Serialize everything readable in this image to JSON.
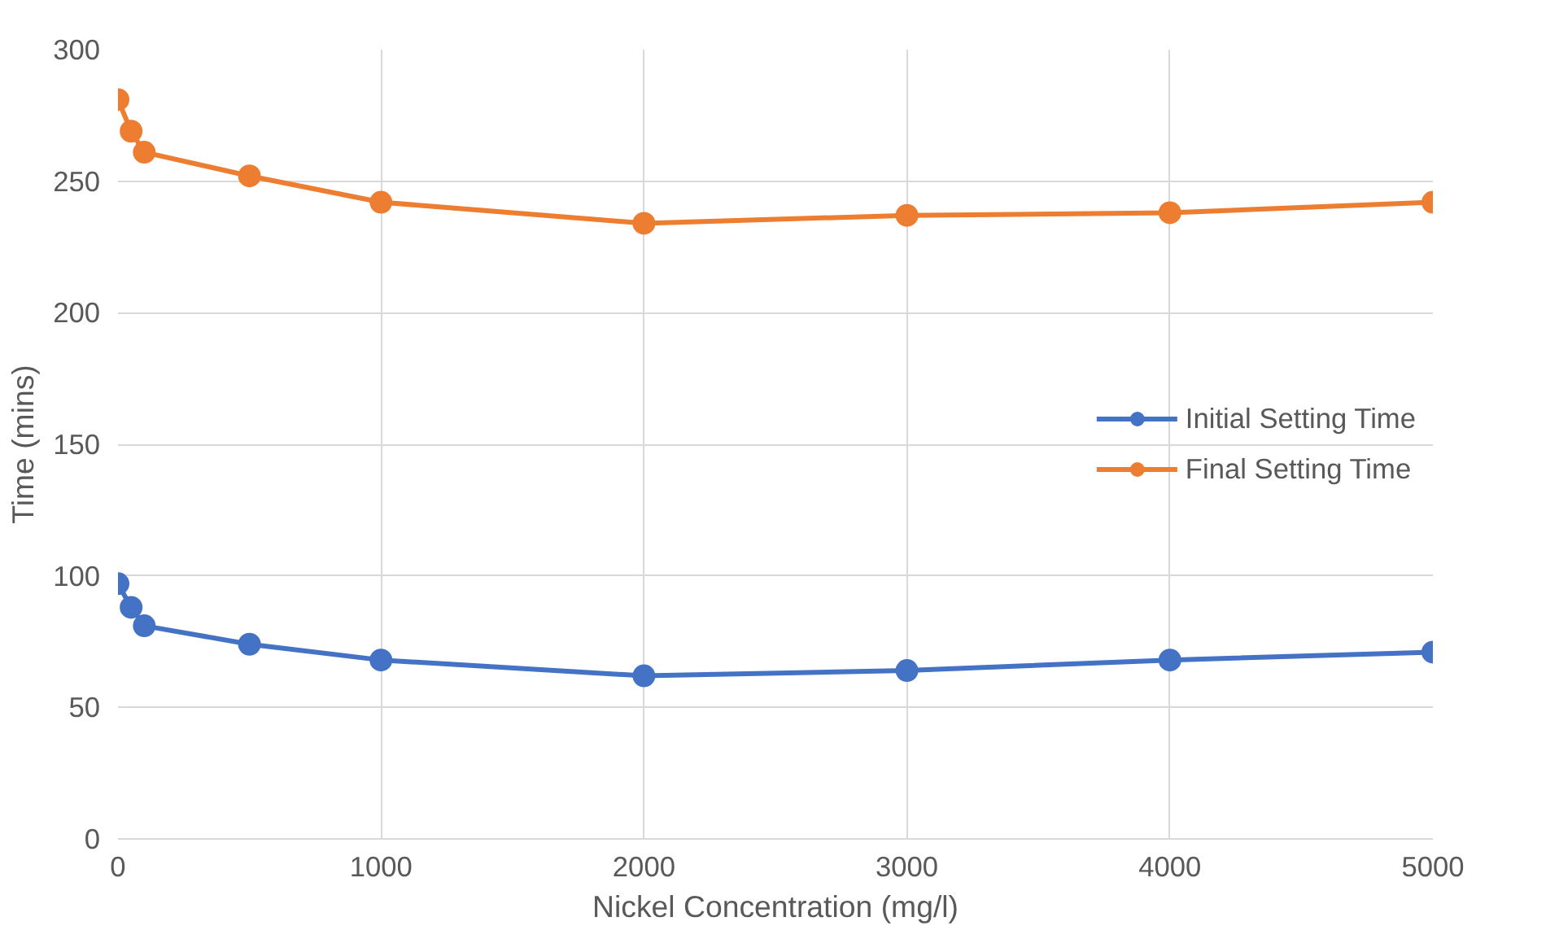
{
  "chart_data": {
    "type": "line",
    "xlabel": "Nickel Concentration (mg/l)",
    "ylabel": "Time (mins)",
    "x": [
      0,
      50,
      100,
      500,
      1000,
      2000,
      3000,
      4000,
      5000
    ],
    "series": [
      {
        "name": "Initial Setting Time",
        "color": "#4472c4",
        "values": [
          97,
          88,
          81,
          74,
          68,
          62,
          64,
          68,
          71
        ]
      },
      {
        "name": "Final Setting Time",
        "color": "#ed7d31",
        "values": [
          281,
          269,
          261,
          252,
          242,
          234,
          237,
          238,
          242
        ]
      }
    ],
    "xlim": [
      0,
      5000
    ],
    "xticks": [
      0,
      1000,
      2000,
      3000,
      4000,
      5000
    ],
    "ylim": [
      0,
      300
    ],
    "yticks": [
      0,
      50,
      100,
      150,
      200,
      250,
      300
    ],
    "grid": true,
    "legend": "right",
    "marker": "circle",
    "line_style": "solid"
  }
}
